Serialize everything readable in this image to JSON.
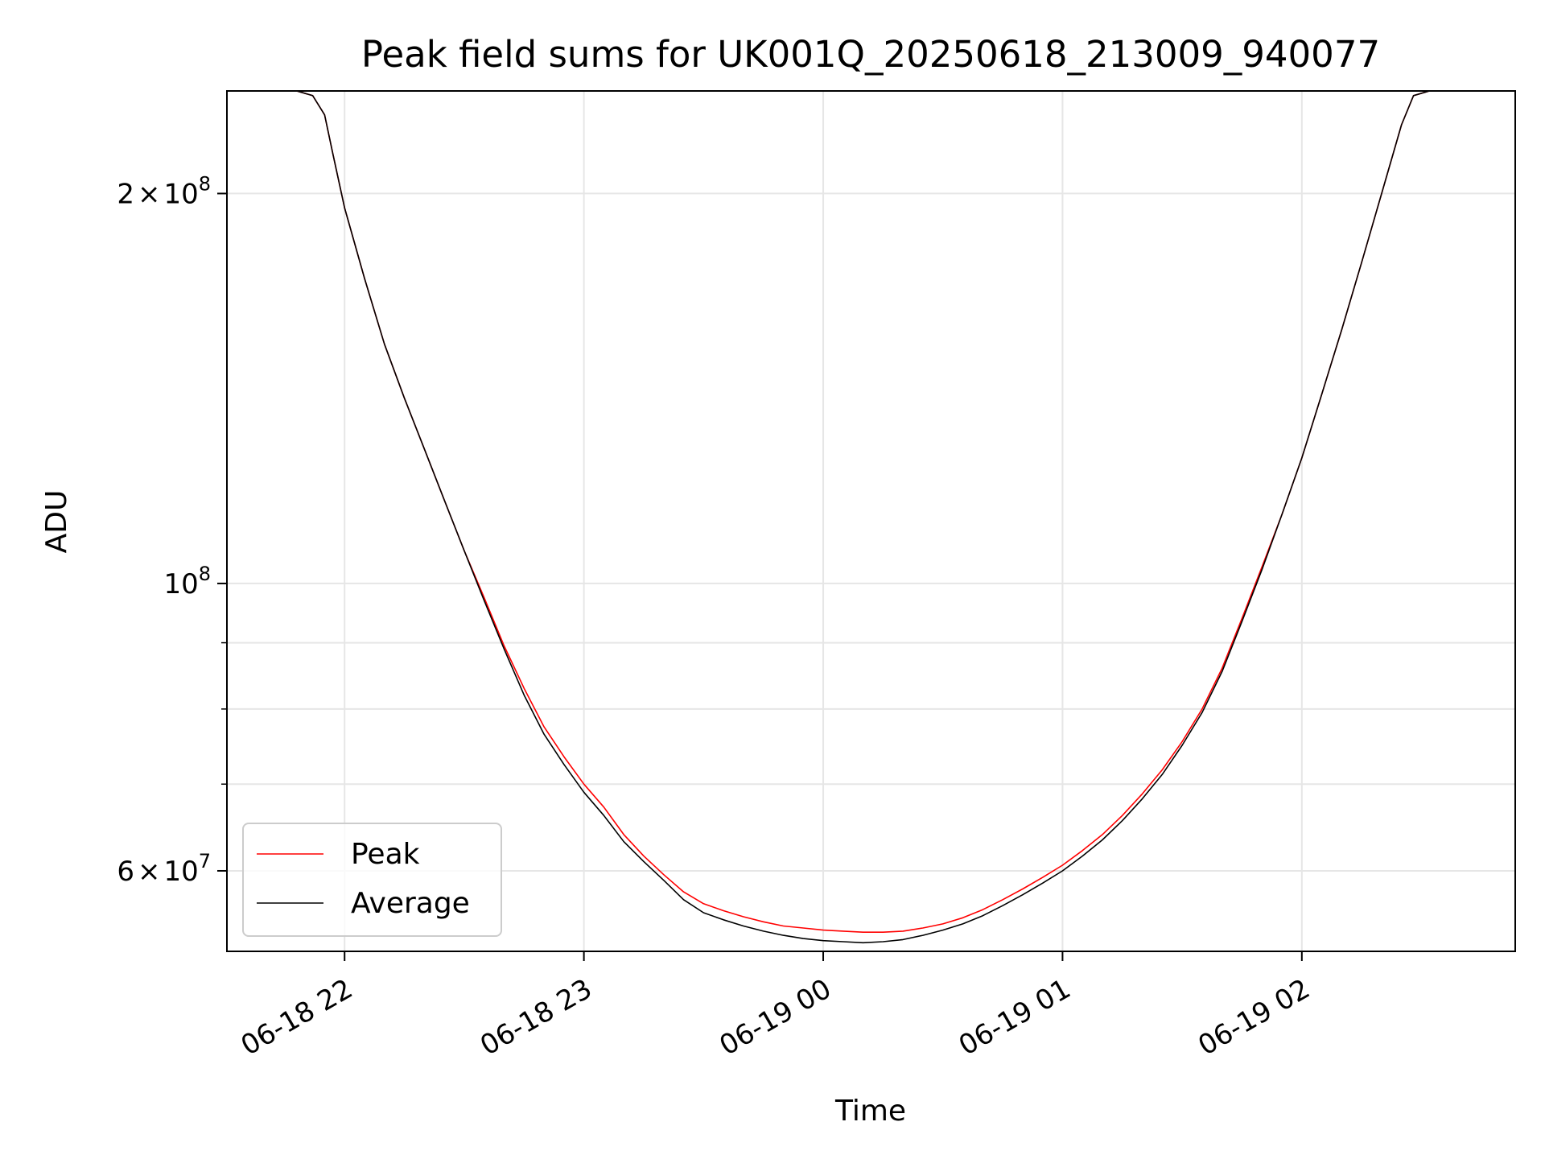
{
  "chart_data": {
    "type": "line",
    "title": "Peak field sums for UK001Q_20250618_213009_940077",
    "xlabel": "Time",
    "ylabel": "ADU",
    "y_scale": "log",
    "xlim": [
      "2025-06-18 21:30:30",
      "2025-06-19 02:53:30"
    ],
    "ylim": [
      52000000,
      240000000
    ],
    "x_ticks": [
      {
        "value": "2025-06-18 22:00",
        "label": "06-18 22"
      },
      {
        "value": "2025-06-18 23:00",
        "label": "06-18 23"
      },
      {
        "value": "2025-06-19 00:00",
        "label": "06-19 00"
      },
      {
        "value": "2025-06-19 01:00",
        "label": "06-19 01"
      },
      {
        "value": "2025-06-19 02:00",
        "label": "06-19 02"
      }
    ],
    "y_major_ticks": [
      {
        "value": 200000000,
        "mantissa": "2",
        "times": "×",
        "base": "10",
        "exponent": "8"
      },
      {
        "value": 100000000,
        "mantissa": "",
        "times": "",
        "base": "10",
        "exponent": "8"
      },
      {
        "value": 60000000,
        "mantissa": "6",
        "times": "×",
        "base": "10",
        "exponent": "7"
      }
    ],
    "y_minor_ticks": [
      70000000,
      80000000,
      90000000
    ],
    "grid": true,
    "legend_position": "lower-left",
    "series": [
      {
        "name": "Peak",
        "color": "#ff0000",
        "x": [
          "2025-06-18 21:30:30",
          "2025-06-18 21:40",
          "2025-06-18 21:48",
          "2025-06-18 21:52",
          "2025-06-18 21:55",
          "2025-06-18 21:57",
          "2025-06-18 22:00",
          "2025-06-18 22:05",
          "2025-06-18 22:10",
          "2025-06-18 22:15",
          "2025-06-18 22:20",
          "2025-06-18 22:25",
          "2025-06-18 22:30",
          "2025-06-18 22:35",
          "2025-06-18 22:40",
          "2025-06-18 22:45",
          "2025-06-18 22:50",
          "2025-06-18 22:55",
          "2025-06-18 23:00",
          "2025-06-18 23:05",
          "2025-06-18 23:10",
          "2025-06-18 23:15",
          "2025-06-18 23:20",
          "2025-06-18 23:25",
          "2025-06-18 23:30",
          "2025-06-18 23:35",
          "2025-06-18 23:40",
          "2025-06-18 23:45",
          "2025-06-18 23:50",
          "2025-06-18 23:55",
          "2025-06-19 00:00",
          "2025-06-19 00:05",
          "2025-06-19 00:10",
          "2025-06-19 00:15",
          "2025-06-19 00:20",
          "2025-06-19 00:25",
          "2025-06-19 00:30",
          "2025-06-19 00:35",
          "2025-06-19 00:40",
          "2025-06-19 00:45",
          "2025-06-19 00:50",
          "2025-06-19 00:55",
          "2025-06-19 01:00",
          "2025-06-19 01:05",
          "2025-06-19 01:10",
          "2025-06-19 01:15",
          "2025-06-19 01:20",
          "2025-06-19 01:25",
          "2025-06-19 01:30",
          "2025-06-19 01:35",
          "2025-06-19 01:40",
          "2025-06-19 01:45",
          "2025-06-19 01:50",
          "2025-06-19 01:55",
          "2025-06-19 02:00",
          "2025-06-19 02:05",
          "2025-06-19 02:10",
          "2025-06-19 02:15",
          "2025-06-19 02:20",
          "2025-06-19 02:25",
          "2025-06-19 02:28",
          "2025-06-19 02:32",
          "2025-06-19 02:40",
          "2025-06-19 02:53:30"
        ],
        "y": [
          240000000,
          240000000,
          240000000,
          238000000,
          230000000,
          215000000,
          195000000,
          172000000,
          153000000,
          139000000,
          127000000,
          116000000,
          106000000,
          97500000,
          89500000,
          83000000,
          77500000,
          73500000,
          70000000,
          67200000,
          64000000,
          61600000,
          59600000,
          57800000,
          56600000,
          55900000,
          55300000,
          54800000,
          54400000,
          54200000,
          54000000,
          53900000,
          53800000,
          53800000,
          53900000,
          54200000,
          54600000,
          55200000,
          56000000,
          57000000,
          58100000,
          59300000,
          60600000,
          62200000,
          64000000,
          66200000,
          68800000,
          71800000,
          75500000,
          80000000,
          86000000,
          94000000,
          103000000,
          113000000,
          125000000,
          140000000,
          157000000,
          177000000,
          200000000,
          226000000,
          238000000,
          240000000,
          240000000,
          240000000
        ]
      },
      {
        "name": "Average",
        "color": "#000000",
        "x": [
          "2025-06-18 21:30:30",
          "2025-06-18 21:40",
          "2025-06-18 21:48",
          "2025-06-18 21:52",
          "2025-06-18 21:55",
          "2025-06-18 21:57",
          "2025-06-18 22:00",
          "2025-06-18 22:05",
          "2025-06-18 22:10",
          "2025-06-18 22:15",
          "2025-06-18 22:20",
          "2025-06-18 22:25",
          "2025-06-18 22:30",
          "2025-06-18 22:35",
          "2025-06-18 22:40",
          "2025-06-18 22:45",
          "2025-06-18 22:50",
          "2025-06-18 22:55",
          "2025-06-18 23:00",
          "2025-06-18 23:05",
          "2025-06-18 23:10",
          "2025-06-18 23:15",
          "2025-06-18 23:20",
          "2025-06-18 23:25",
          "2025-06-18 23:30",
          "2025-06-18 23:35",
          "2025-06-18 23:40",
          "2025-06-18 23:45",
          "2025-06-18 23:50",
          "2025-06-18 23:55",
          "2025-06-19 00:00",
          "2025-06-19 00:05",
          "2025-06-19 00:10",
          "2025-06-19 00:15",
          "2025-06-19 00:20",
          "2025-06-19 00:25",
          "2025-06-19 00:30",
          "2025-06-19 00:35",
          "2025-06-19 00:40",
          "2025-06-19 00:45",
          "2025-06-19 00:50",
          "2025-06-19 00:55",
          "2025-06-19 01:00",
          "2025-06-19 01:05",
          "2025-06-19 01:10",
          "2025-06-19 01:15",
          "2025-06-19 01:20",
          "2025-06-19 01:25",
          "2025-06-19 01:30",
          "2025-06-19 01:35",
          "2025-06-19 01:40",
          "2025-06-19 01:45",
          "2025-06-19 01:50",
          "2025-06-19 01:55",
          "2025-06-19 02:00",
          "2025-06-19 02:05",
          "2025-06-19 02:10",
          "2025-06-19 02:15",
          "2025-06-19 02:20",
          "2025-06-19 02:25",
          "2025-06-19 02:28",
          "2025-06-19 02:32",
          "2025-06-19 02:40",
          "2025-06-19 02:53:30"
        ],
        "y": [
          240000000,
          240000000,
          240000000,
          238000000,
          230000000,
          215000000,
          195000000,
          172000000,
          153000000,
          139000000,
          127000000,
          116000000,
          106000000,
          97000000,
          89000000,
          82000000,
          76500000,
          72500000,
          69000000,
          66200000,
          63200000,
          61000000,
          59000000,
          57000000,
          55700000,
          55000000,
          54400000,
          53900000,
          53500000,
          53200000,
          53000000,
          52900000,
          52800000,
          52900000,
          53100000,
          53500000,
          54000000,
          54600000,
          55400000,
          56400000,
          57500000,
          58700000,
          60000000,
          61600000,
          63400000,
          65600000,
          68200000,
          71200000,
          75000000,
          79500000,
          85500000,
          93500000,
          102500000,
          113000000,
          125000000,
          140000000,
          157000000,
          177000000,
          200000000,
          226000000,
          238000000,
          240000000,
          240000000,
          240000000
        ]
      }
    ]
  }
}
